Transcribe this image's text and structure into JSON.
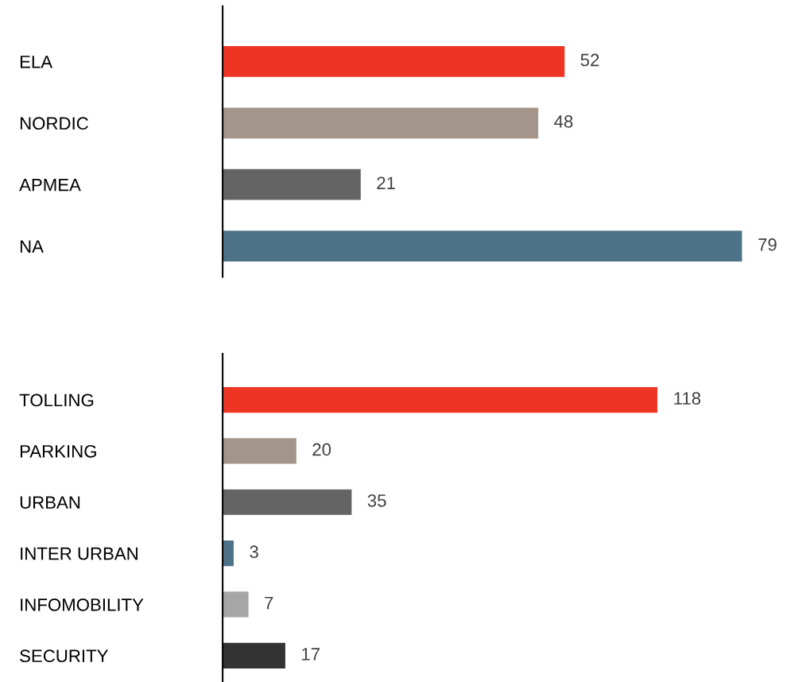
{
  "chart_data": [
    {
      "type": "bar",
      "orientation": "horizontal",
      "categories": [
        "ELA",
        "NORDIC",
        "APMEA",
        "NA"
      ],
      "values": [
        52,
        48,
        21,
        79
      ],
      "colors": [
        "#ee3524",
        "#a39589",
        "#646464",
        "#4e7389"
      ],
      "data_labels": true,
      "tick_labels": "y",
      "grid": false,
      "legend": false
    },
    {
      "type": "bar",
      "orientation": "horizontal",
      "categories": [
        "TOLLING",
        "PARKING",
        "URBAN",
        "INTER URBAN",
        "INFOMOBILITY",
        "SECURITY"
      ],
      "values": [
        118,
        20,
        35,
        3,
        7,
        17
      ],
      "colors": [
        "#ee3524",
        "#a39589",
        "#646464",
        "#4e7389",
        "#a6a6a6",
        "#333333"
      ],
      "data_labels": true,
      "tick_labels": "y",
      "grid": false,
      "legend": false
    }
  ]
}
